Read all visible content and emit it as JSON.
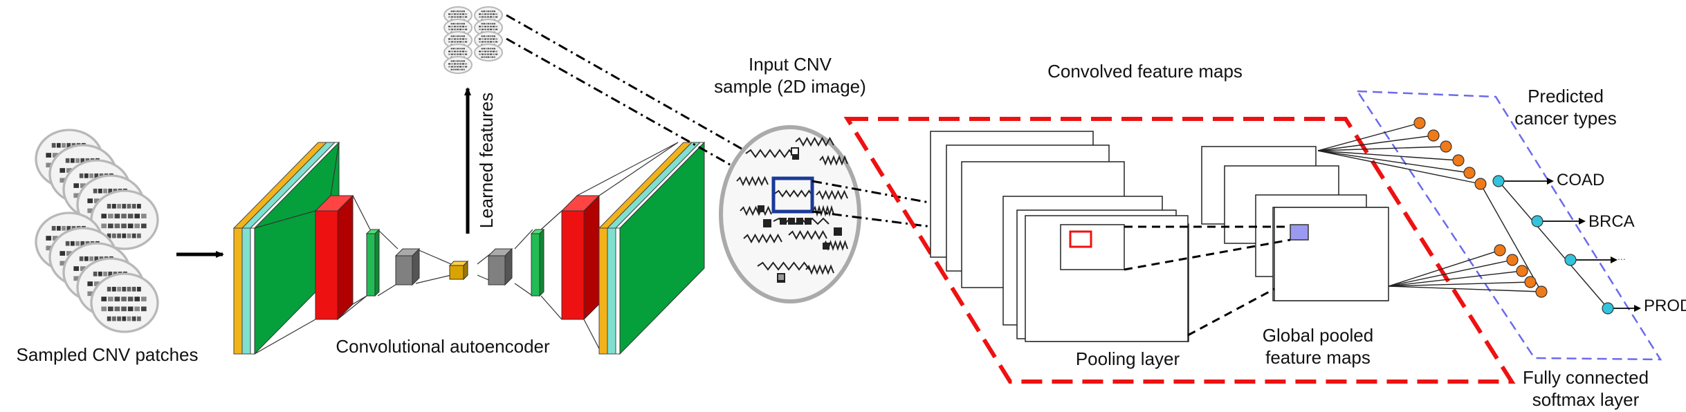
{
  "labels": {
    "sampled_patches": "Sampled CNV patches",
    "autoencoder": "Convolutional autoencoder",
    "learned_features": "Learned features",
    "input_line1": "Input CNV",
    "input_line2": "sample (2D image)",
    "convolved": "Convolved feature maps",
    "pooling": "Pooling layer",
    "global_line1": "Global pooled",
    "global_line2": "feature maps",
    "predicted_line1": "Predicted",
    "predicted_line2": "cancer types",
    "fc_line1": "Fully connected",
    "fc_line2": "softmax layer"
  },
  "outputs": [
    "COAD",
    "BRCA",
    "...",
    "PROD"
  ],
  "colors": {
    "encoder_orange": "#f2b21a",
    "encoder_cyan": "#7fe0cf",
    "encoder_green": "#05a03b",
    "pool_red": "#ee1111",
    "bottleneck_gray": "#808080",
    "code_yellow": "#d9a300",
    "frame_red": "#ee1111",
    "frame_blue": "#6a6aee",
    "node_orange": "#f07a18",
    "node_cyan": "#33c4dd",
    "input_frame": "#1a3a99",
    "pooled_patch": "#9a9af0"
  }
}
